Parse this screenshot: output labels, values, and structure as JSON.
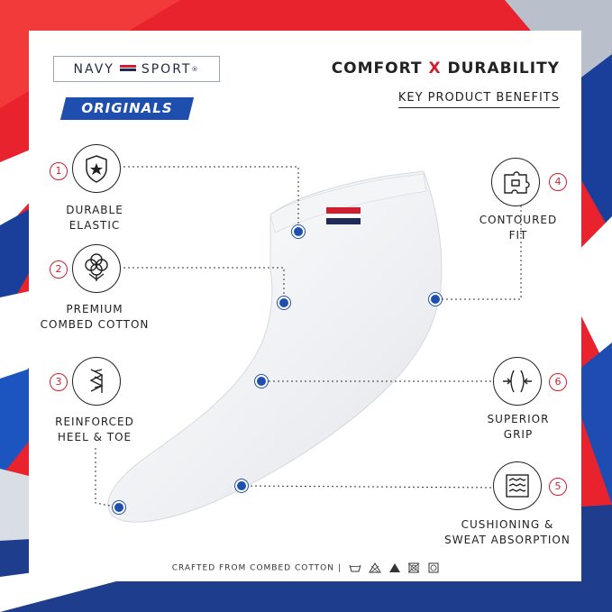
{
  "brand": {
    "name_left": "NAVY",
    "name_right": "SPORT",
    "registered": "®",
    "tagline": "ORIGINALS",
    "flag_colors": [
      "#cf1f2e",
      "#ffffff",
      "#1f2a56"
    ]
  },
  "header": {
    "title_part1": "COMFORT",
    "title_x": "X",
    "title_part2": "DURABILITY",
    "subtitle": "KEY PRODUCT BENEFITS"
  },
  "benefits": [
    {
      "number": "1",
      "line1": "DURABLE",
      "line2": "ELASTIC",
      "icon": "shield-star-icon"
    },
    {
      "number": "2",
      "line1": "PREMIUM",
      "line2": "COMBED COTTON",
      "icon": "cotton-flower-icon"
    },
    {
      "number": "3",
      "line1": "REINFORCED",
      "line2": "HEEL & TOE",
      "icon": "stitch-chain-icon"
    },
    {
      "number": "4",
      "line1": "CONTOURED",
      "line2": "FIT",
      "icon": "puzzle-fit-icon"
    },
    {
      "number": "6",
      "line1": "SUPERIOR",
      "line2": "GRIP",
      "icon": "grip-arrows-icon"
    },
    {
      "number": "5",
      "line1": "CUSHIONING &",
      "line2": "SWEAT ABSORPTION",
      "icon": "cushion-waves-icon"
    }
  ],
  "footer": {
    "text": "CRAFTED FROM COMBED COTTON",
    "separator": "|",
    "care_icons": [
      "wash-icon",
      "no-bleach-icon",
      "iron-icon",
      "no-tumble-dry-icon",
      "no-dry-clean-icon"
    ]
  },
  "colors": {
    "accent_red": "#cf1f2e",
    "accent_blue": "#1f4fae",
    "text_dark": "#222222"
  }
}
